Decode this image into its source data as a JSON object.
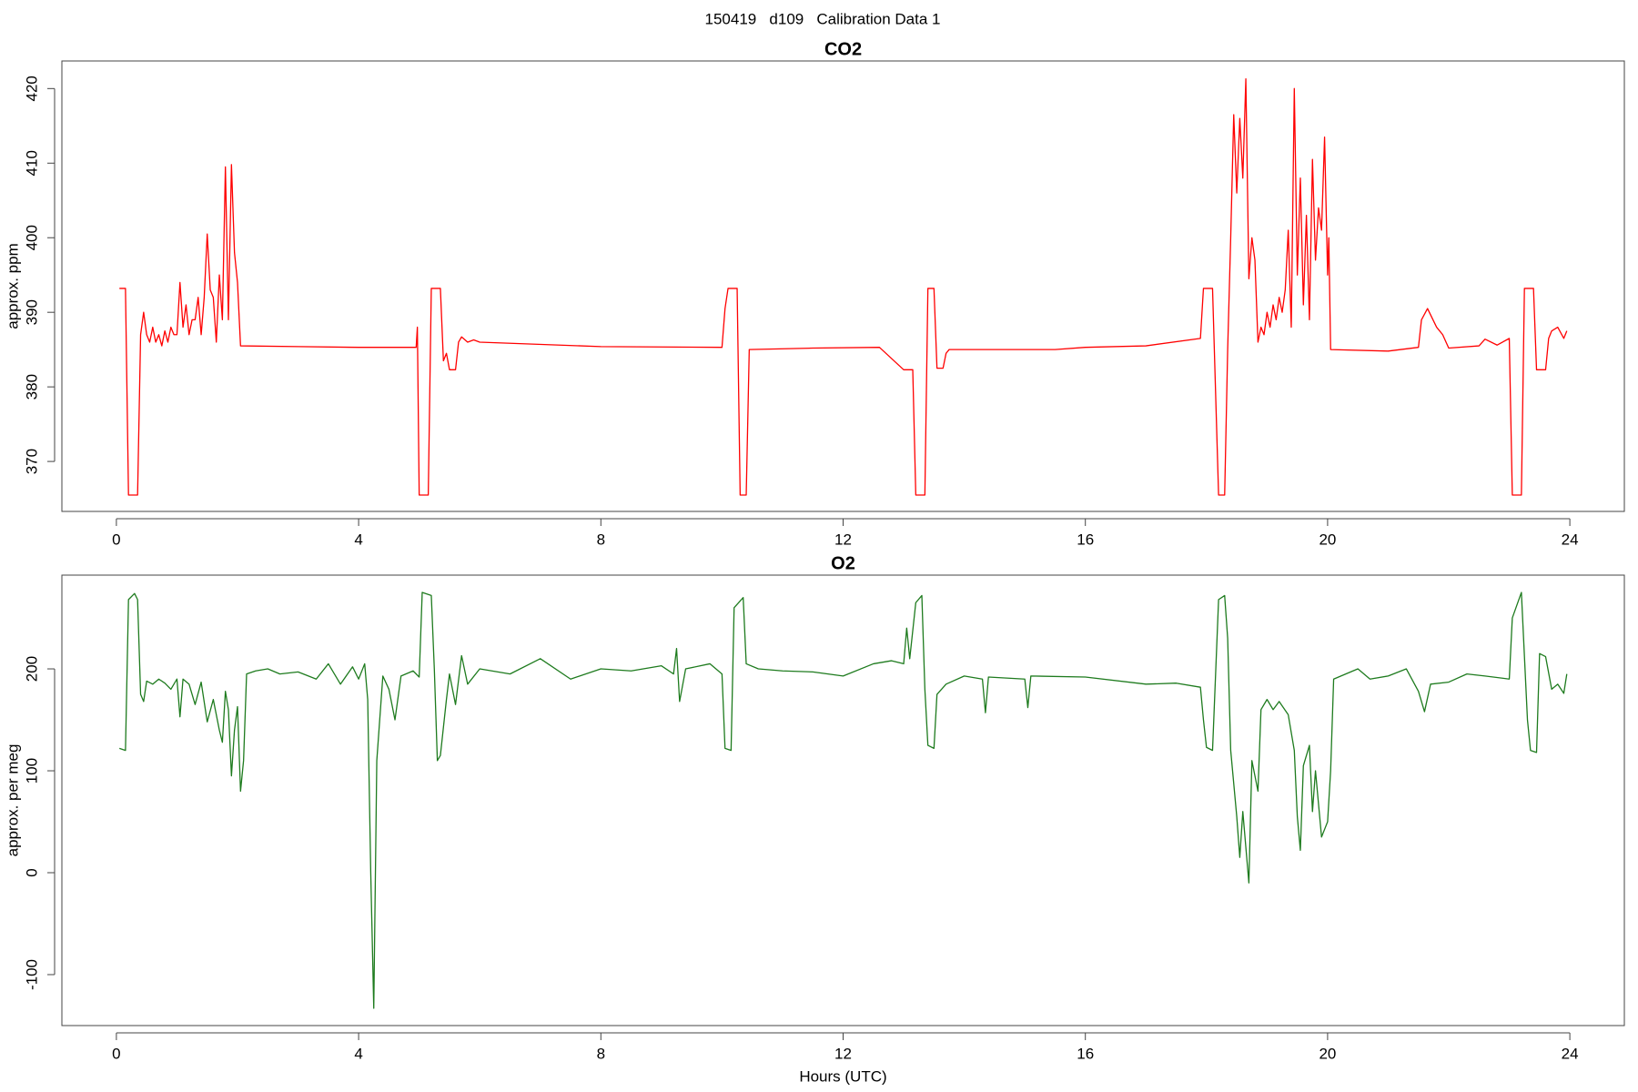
{
  "title": "150419   d109   Calibration Data 1",
  "chart_data": [
    {
      "type": "line",
      "title": "CO2",
      "ylabel": "approx. ppm",
      "color": "#ff0000",
      "xlim": [
        -0.9,
        24.9
      ],
      "xticks": [
        0,
        4,
        8,
        12,
        16,
        20,
        24
      ],
      "ylim": [
        363.3,
        423.7
      ],
      "yticks": [
        370,
        380,
        390,
        400,
        410,
        420
      ],
      "x": [
        0.05,
        0.15,
        0.2,
        0.35,
        0.4,
        0.45,
        0.5,
        0.55,
        0.6,
        0.65,
        0.7,
        0.75,
        0.8,
        0.85,
        0.9,
        0.95,
        1.0,
        1.05,
        1.1,
        1.15,
        1.2,
        1.25,
        1.3,
        1.35,
        1.4,
        1.45,
        1.5,
        1.55,
        1.6,
        1.65,
        1.7,
        1.75,
        1.8,
        1.85,
        1.9,
        1.95,
        2.0,
        2.05,
        3.0,
        4.0,
        4.95,
        4.97,
        5.0,
        5.15,
        5.2,
        5.35,
        5.4,
        5.45,
        5.5,
        5.6,
        5.65,
        5.7,
        5.8,
        5.9,
        6.0,
        8.0,
        10.0,
        10.05,
        10.1,
        10.25,
        10.3,
        10.4,
        10.45,
        11.5,
        12.6,
        13.0,
        13.15,
        13.2,
        13.35,
        13.4,
        13.5,
        13.55,
        13.65,
        13.7,
        13.75,
        15.5,
        16.0,
        17.0,
        17.9,
        17.95,
        18.1,
        18.2,
        18.3,
        18.35,
        18.4,
        18.45,
        18.5,
        18.55,
        18.6,
        18.65,
        18.7,
        18.75,
        18.8,
        18.85,
        18.9,
        18.95,
        19.0,
        19.05,
        19.1,
        19.15,
        19.2,
        19.25,
        19.3,
        19.35,
        19.4,
        19.45,
        19.5,
        19.55,
        19.6,
        19.65,
        19.7,
        19.75,
        19.8,
        19.85,
        19.9,
        19.95,
        20.0,
        20.02,
        20.05,
        21.0,
        21.5,
        21.55,
        21.65,
        21.8,
        21.9,
        22.0,
        22.5,
        22.6,
        22.8,
        23.0,
        23.05,
        23.2,
        23.25,
        23.4,
        23.45,
        23.6,
        23.65,
        23.7,
        23.8,
        23.9,
        23.95
      ],
      "values": [
        393.2,
        393.2,
        365.5,
        365.5,
        387,
        390,
        387,
        386,
        388,
        386,
        387,
        385.5,
        387.5,
        386,
        388,
        387,
        387,
        394,
        388,
        391,
        387,
        389,
        389,
        392,
        387,
        392,
        400.5,
        393,
        392,
        386,
        395,
        389,
        409.5,
        389,
        409.8,
        398,
        394,
        385.5,
        385.4,
        385.3,
        385.3,
        388,
        365.5,
        365.5,
        393.2,
        393.2,
        383.5,
        384.5,
        382.3,
        382.3,
        386,
        386.7,
        386,
        386.3,
        386,
        385.4,
        385.3,
        390.5,
        393.2,
        393.2,
        365.5,
        365.5,
        385,
        385.2,
        385.3,
        382.3,
        382.3,
        365.5,
        365.5,
        393.2,
        393.2,
        382.5,
        382.5,
        384.5,
        385,
        385,
        385.3,
        385.5,
        386.5,
        393.2,
        393.2,
        365.5,
        365.5,
        385,
        400,
        416.5,
        406,
        416,
        408,
        421.3,
        394.5,
        400,
        397,
        386,
        388,
        387,
        390,
        388,
        391,
        389,
        392,
        390,
        393,
        401,
        388,
        420,
        395,
        408,
        391,
        403,
        389,
        410.5,
        397,
        404,
        401,
        413.5,
        395,
        400,
        385,
        384.8,
        385.3,
        389,
        390.5,
        388,
        387,
        385.2,
        385.5,
        386.4,
        385.6,
        386.5,
        365.5,
        365.5,
        393.2,
        393.2,
        382.3,
        382.3,
        386.5,
        387.5,
        388,
        386.5,
        387.5
      ]
    },
    {
      "type": "line",
      "title": "O2",
      "ylabel": "approx. per meg",
      "xlabel": "Hours (UTC)",
      "color": "#1e7b1e",
      "xlim": [
        -0.9,
        24.9
      ],
      "xticks": [
        0,
        4,
        8,
        12,
        16,
        20,
        24
      ],
      "ylim": [
        -150,
        292
      ],
      "yticks": [
        -100,
        0,
        100,
        200
      ],
      "x": [
        0.05,
        0.15,
        0.2,
        0.3,
        0.35,
        0.4,
        0.45,
        0.5,
        0.6,
        0.7,
        0.8,
        0.9,
        1.0,
        1.05,
        1.1,
        1.2,
        1.3,
        1.4,
        1.5,
        1.6,
        1.7,
        1.75,
        1.8,
        1.85,
        1.9,
        1.95,
        2.0,
        2.05,
        2.1,
        2.15,
        2.3,
        2.5,
        2.7,
        3.0,
        3.3,
        3.5,
        3.7,
        3.9,
        4.0,
        4.1,
        4.15,
        4.2,
        4.25,
        4.3,
        4.4,
        4.5,
        4.6,
        4.7,
        4.9,
        5.0,
        5.05,
        5.2,
        5.25,
        5.3,
        5.35,
        5.45,
        5.5,
        5.6,
        5.7,
        5.8,
        6.0,
        6.5,
        7.0,
        7.5,
        8.0,
        8.5,
        9.0,
        9.2,
        9.25,
        9.3,
        9.4,
        9.8,
        10.0,
        10.05,
        10.15,
        10.2,
        10.35,
        10.4,
        10.6,
        11.0,
        11.5,
        12.0,
        12.5,
        12.8,
        13.0,
        13.05,
        13.1,
        13.2,
        13.3,
        13.35,
        13.4,
        13.5,
        13.55,
        13.7,
        14.0,
        14.3,
        14.35,
        14.4,
        15.0,
        15.05,
        15.1,
        16.0,
        17.0,
        17.5,
        17.9,
        17.95,
        18.0,
        18.1,
        18.2,
        18.3,
        18.35,
        18.4,
        18.5,
        18.55,
        18.6,
        18.65,
        18.7,
        18.75,
        18.85,
        18.9,
        19.0,
        19.1,
        19.2,
        19.35,
        19.45,
        19.5,
        19.55,
        19.6,
        19.7,
        19.75,
        19.8,
        19.9,
        20.0,
        20.05,
        20.1,
        20.3,
        20.5,
        20.7,
        21.0,
        21.3,
        21.5,
        21.6,
        21.7,
        22.0,
        22.3,
        22.6,
        23.0,
        23.05,
        23.2,
        23.3,
        23.35,
        23.45,
        23.5,
        23.6,
        23.7,
        23.8,
        23.9,
        23.95
      ],
      "values": [
        122,
        120,
        268,
        274,
        268,
        175,
        168,
        188,
        185,
        190,
        186,
        180,
        190,
        153,
        190,
        185,
        165,
        187,
        148,
        170,
        140,
        128,
        178,
        160,
        95,
        140,
        163,
        80,
        110,
        195,
        198,
        200,
        195,
        197,
        190,
        205,
        185,
        202,
        190,
        205,
        170,
        0,
        -133,
        110,
        193,
        180,
        150,
        193,
        198,
        192,
        275,
        272,
        200,
        110,
        115,
        170,
        195,
        165,
        213,
        185,
        200,
        195,
        210,
        190,
        200,
        198,
        203,
        195,
        220,
        168,
        200,
        205,
        195,
        122,
        120,
        260,
        270,
        205,
        200,
        198,
        197,
        193,
        205,
        208,
        205,
        240,
        210,
        265,
        272,
        180,
        125,
        122,
        175,
        185,
        193,
        190,
        157,
        192,
        190,
        162,
        193,
        192,
        185,
        186,
        182,
        150,
        123,
        120,
        268,
        272,
        230,
        120,
        55,
        15,
        60,
        25,
        -10,
        110,
        80,
        160,
        170,
        160,
        168,
        155,
        120,
        55,
        22,
        105,
        125,
        60,
        100,
        35,
        50,
        100,
        190,
        195,
        200,
        190,
        193,
        200,
        178,
        158,
        185,
        187,
        195,
        193,
        190,
        250,
        275,
        150,
        120,
        118,
        215,
        212,
        180,
        185,
        176,
        195
      ]
    }
  ]
}
